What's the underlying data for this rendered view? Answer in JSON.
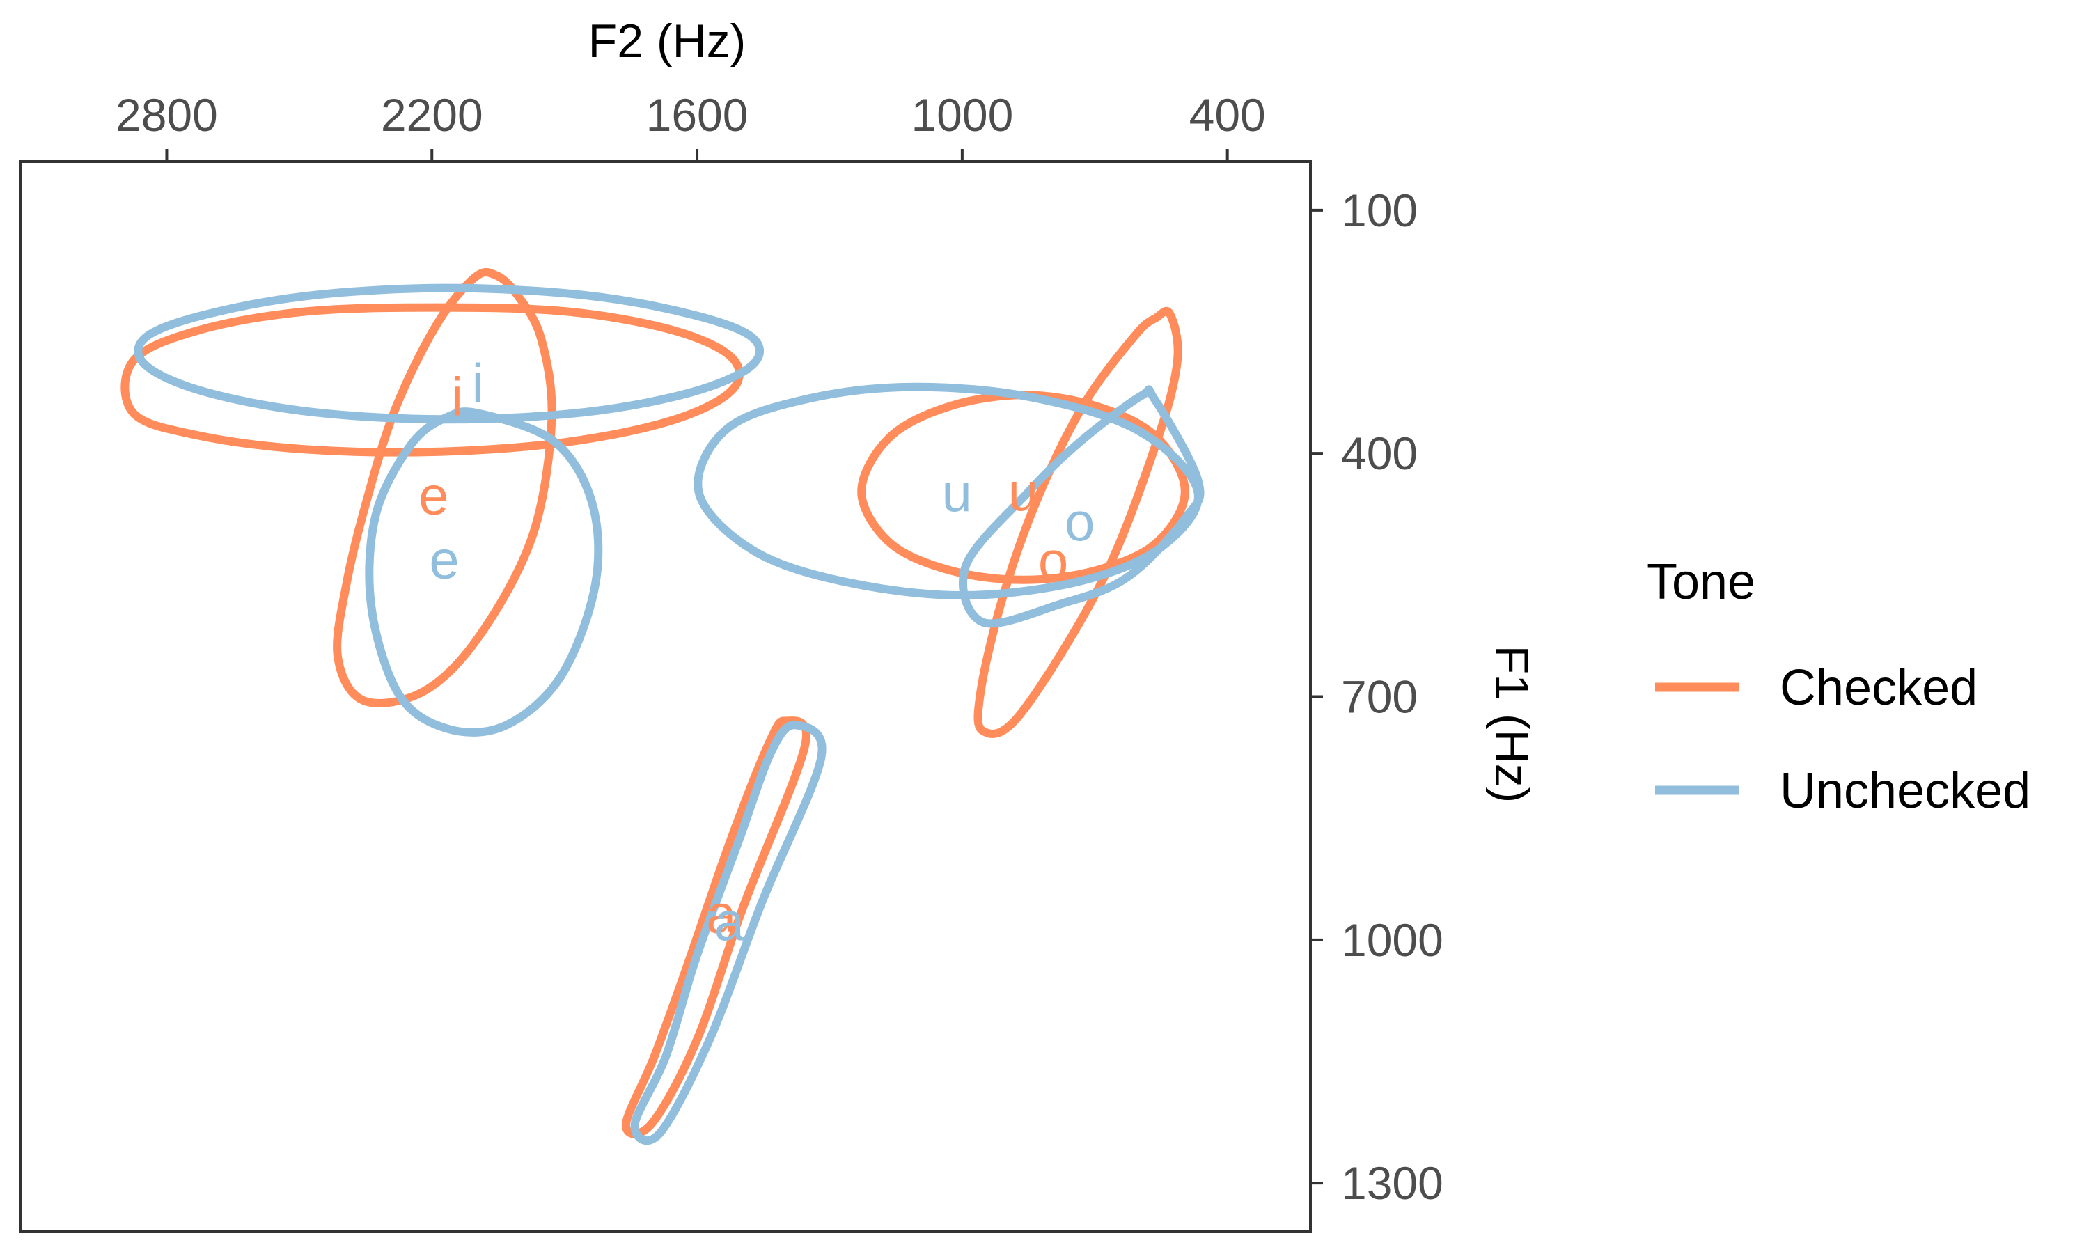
{
  "chart_data": {
    "type": "scatter",
    "xlabel": "F2 (Hz)",
    "ylabel": "F1 (Hz)",
    "x_reversed": true,
    "y_reversed": true,
    "x_axis_position": "top",
    "y_axis_position": "right",
    "xlim": [
      3130,
      212
    ],
    "ylim": [
      40,
      1360
    ],
    "x_ticks": [
      2800,
      2200,
      1600,
      1000,
      400
    ],
    "y_ticks": [
      100,
      400,
      700,
      1000,
      1300
    ],
    "x_tick_labels": [
      "2800",
      "2200",
      "1600",
      "1000",
      "400"
    ],
    "y_tick_labels": [
      "100",
      "400",
      "700",
      "1000",
      "1300"
    ],
    "legend": {
      "title": "Tone",
      "position": "right",
      "entries": [
        "Checked",
        "Unchecked"
      ]
    },
    "series": [
      {
        "name": "Checked",
        "color": "#FF8C5A",
        "vowels": [
          {
            "label": "i",
            "F2": 2143,
            "F1": 330,
            "ellipse_points": [
              [
                2876,
                350
              ],
              [
                2727,
                378
              ],
              [
                2485,
                395
              ],
              [
                2191,
                398
              ],
              [
                1895,
                386
              ],
              [
                1655,
                359
              ],
              [
                1521,
                322
              ],
              [
                1521,
                282
              ],
              [
                1655,
                248
              ],
              [
                1895,
                225
              ],
              [
                2191,
                220
              ],
              [
                2485,
                225
              ],
              [
                2727,
                248
              ],
              [
                2876,
                286
              ]
            ]
          },
          {
            "label": "e",
            "F2": 2196,
            "F1": 452,
            "ellipse_points": [
              [
                2056,
                180
              ],
              [
                2009,
                203
              ],
              [
                1953,
                258
              ],
              [
                1929,
                359
              ],
              [
                1972,
                501
              ],
              [
                2091,
                624
              ],
              [
                2217,
                693
              ],
              [
                2354,
                705
              ],
              [
                2413,
                651
              ],
              [
                2393,
                560
              ],
              [
                2347,
                457
              ],
              [
                2282,
                344
              ],
              [
                2188,
                240
              ],
              [
                2103,
                183
              ]
            ]
          },
          {
            "label": "u",
            "F2": 862,
            "F1": 447,
            "ellipse_points": [
              [
                1228,
                447
              ],
              [
                1164,
                380
              ],
              [
                1029,
                342
              ],
              [
                862,
                328
              ],
              [
                695,
                342
              ],
              [
                560,
                380
              ],
              [
                496,
                447
              ],
              [
                560,
                510
              ],
              [
                695,
                544
              ],
              [
                862,
                556
              ],
              [
                1029,
                544
              ],
              [
                1164,
                510
              ]
            ]
          },
          {
            "label": "o",
            "F2": 794,
            "F1": 532,
            "ellipse_points": [
              [
                530,
                228
              ],
              [
                513,
                285
              ],
              [
                560,
                386
              ],
              [
                683,
                557
              ],
              [
                869,
                722
              ],
              [
                954,
                742
              ],
              [
                958,
                693
              ],
              [
                908,
                577
              ],
              [
                829,
                455
              ],
              [
                724,
                339
              ],
              [
                608,
                254
              ],
              [
                562,
                233
              ]
            ]
          },
          {
            "label": "a",
            "F2": 1545,
            "F1": 968,
            "ellipse_points": [
              [
                1400,
                730
              ],
              [
                1356,
                761
              ],
              [
                1496,
                960
              ],
              [
                1600,
                1123
              ],
              [
                1703,
                1227
              ],
              [
                1761,
                1228
              ],
              [
                1696,
                1143
              ],
              [
                1621,
                1030
              ],
              [
                1526,
                880
              ],
              [
                1437,
                757
              ]
            ]
          }
        ]
      },
      {
        "name": "Unchecked",
        "color": "#91BEDC",
        "vowels": [
          {
            "label": "i",
            "F2": 2096,
            "F1": 313,
            "ellipse_points": [
              [
                2848,
                257
              ],
              [
                2714,
                229
              ],
              [
                2470,
                205
              ],
              [
                2162,
                196
              ],
              [
                1852,
                205
              ],
              [
                1609,
                229
              ],
              [
                1475,
                257
              ],
              [
                1475,
                291
              ],
              [
                1609,
                324
              ],
              [
                1852,
                349
              ],
              [
                2162,
                358
              ],
              [
                2470,
                349
              ],
              [
                2714,
                324
              ],
              [
                2848,
                291
              ]
            ]
          },
          {
            "label": "e",
            "F2": 2172,
            "F1": 531,
            "ellipse_points": [
              [
                2091,
                351
              ],
              [
                1924,
                385
              ],
              [
                1838,
                460
              ],
              [
                1830,
                561
              ],
              [
                1907,
                674
              ],
              [
                2031,
                735
              ],
              [
                2162,
                740
              ],
              [
                2274,
                698
              ],
              [
                2337,
                589
              ],
              [
                2327,
                476
              ],
              [
                2247,
                389
              ],
              [
                2165,
                355
              ]
            ]
          },
          {
            "label": "u",
            "F2": 1012,
            "F1": 448,
            "ellipse_points": [
              [
                1596,
                448
              ],
              [
                1533,
                370
              ],
              [
                1344,
                332
              ],
              [
                1106,
                318
              ],
              [
                841,
                331
              ],
              [
                601,
                372
              ],
              [
                467,
                447
              ],
              [
                548,
                515
              ],
              [
                729,
                557
              ],
              [
                993,
                575
              ],
              [
                1260,
                559
              ],
              [
                1472,
                520
              ]
            ]
          },
          {
            "label": "o",
            "F2": 734,
            "F1": 484,
            "ellipse_points": [
              [
                595,
                329
              ],
              [
                565,
                333
              ],
              [
                466,
                434
              ],
              [
                494,
                479
              ],
              [
                627,
                553
              ],
              [
                779,
                586
              ],
              [
                954,
                608
              ],
              [
                992,
                539
              ],
              [
                851,
                448
              ],
              [
                734,
                386
              ]
            ]
          },
          {
            "label": "a",
            "F2": 1527,
            "F1": 977,
            "ellipse_points": [
              [
                1378,
                735
              ],
              [
                1319,
                775
              ],
              [
                1452,
                952
              ],
              [
                1570,
                1121
              ],
              [
                1685,
                1239
              ],
              [
                1741,
                1228
              ],
              [
                1670,
                1143
              ],
              [
                1602,
                1022
              ],
              [
                1507,
                880
              ],
              [
                1432,
                768
              ]
            ]
          }
        ]
      }
    ]
  }
}
